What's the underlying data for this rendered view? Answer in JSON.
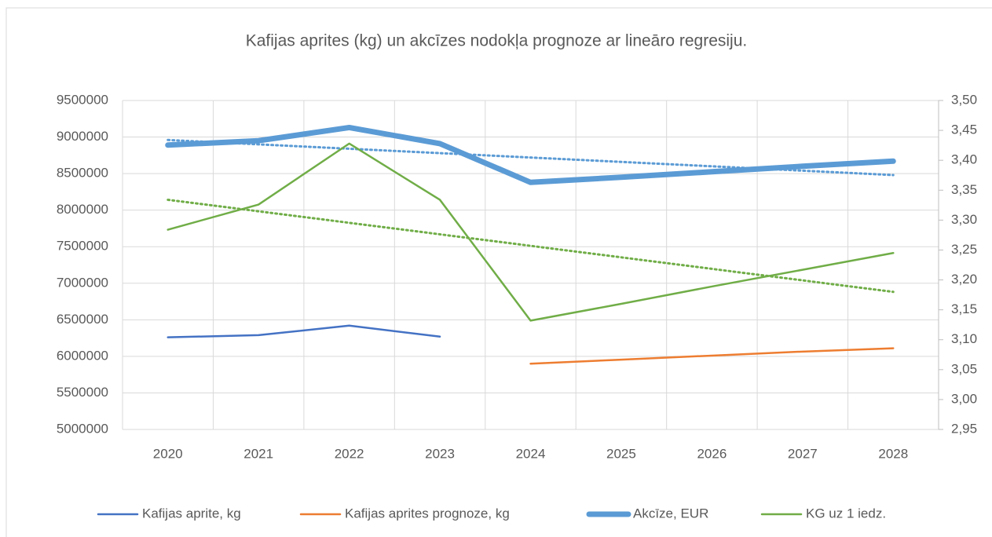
{
  "chart_data": {
    "type": "line",
    "title": "Kafijas aprites (kg) un akcīzes nodokļa prognoze ar lineāro regresiju.",
    "categories": [
      "2020",
      "2021",
      "2022",
      "2023",
      "2024",
      "2025",
      "2026",
      "2027",
      "2028"
    ],
    "ylim": [
      5000000,
      9500000
    ],
    "yticks": [
      5000000,
      5500000,
      6000000,
      6500000,
      7000000,
      7500000,
      8000000,
      8500000,
      9000000,
      9500000
    ],
    "y2lim": [
      2.95,
      3.5
    ],
    "y2ticks": [
      {
        "value": 2.95,
        "label": "2,95"
      },
      {
        "value": 3.0,
        "label": "3,00"
      },
      {
        "value": 3.05,
        "label": "3,05"
      },
      {
        "value": 3.1,
        "label": "3,10"
      },
      {
        "value": 3.15,
        "label": "3,15"
      },
      {
        "value": 3.2,
        "label": "3,20"
      },
      {
        "value": 3.25,
        "label": "3,25"
      },
      {
        "value": 3.3,
        "label": "3,30"
      },
      {
        "value": 3.35,
        "label": "3,35"
      },
      {
        "value": 3.4,
        "label": "3,40"
      },
      {
        "value": 3.45,
        "label": "3,45"
      },
      {
        "value": 3.5,
        "label": "3,50"
      }
    ],
    "grid": true,
    "legend": "bottom",
    "series": [
      {
        "name": "Kafijas aprite, kg",
        "color": "#4472c4",
        "width": 2.5,
        "axis": "y",
        "values": [
          6260000,
          6290000,
          6420000,
          6270000,
          null,
          null,
          null,
          null,
          null
        ]
      },
      {
        "name": "Kafijas aprites prognoze, kg",
        "color": "#ed7d31",
        "width": 2.5,
        "axis": "y",
        "values": [
          null,
          null,
          null,
          null,
          5900000,
          5955000,
          6010000,
          6065000,
          6110000
        ]
      },
      {
        "name": "Akcīze, EUR",
        "color": "#5b9bd5",
        "width": 7,
        "axis": "y",
        "values": [
          8890000,
          8950000,
          9130000,
          8910000,
          8380000,
          8450000,
          8525000,
          8600000,
          8670000
        ]
      },
      {
        "name": "KG uz 1 iedz.",
        "color": "#70ad47",
        "width": 2.5,
        "axis": "y2",
        "values": [
          3.284,
          3.326,
          3.428,
          3.334,
          3.132,
          3.16,
          3.189,
          3.217,
          3.245
        ]
      }
    ],
    "trendlines": [
      {
        "color": "#5b9bd5",
        "axis": "y",
        "values": [
          8960000,
          8480000
        ]
      },
      {
        "color": "#70ad47",
        "axis": "y2",
        "values": [
          3.334,
          3.18
        ]
      }
    ]
  }
}
